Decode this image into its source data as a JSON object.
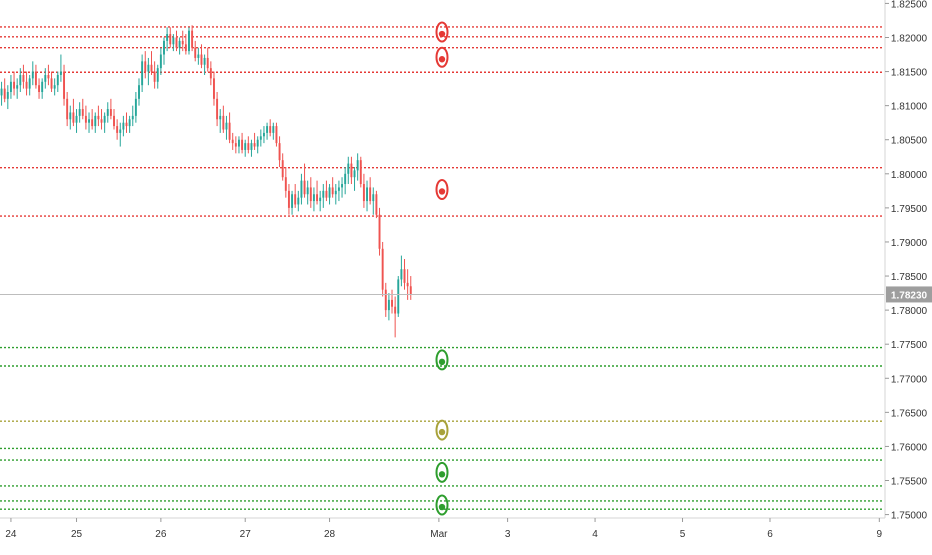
{
  "chart_data": {
    "type": "candlestick",
    "symbol_hint": "",
    "colors": {
      "up": "#26a69a",
      "down": "#ef5350",
      "resistance": "#e53935",
      "support": "#2e9e2e",
      "neutral": "#a8a23a",
      "price_line": "#bdbdbd",
      "price_label_bg": "#9e9e9e",
      "axis_text": "#333333"
    },
    "y_axis": {
      "min": 1.7495,
      "max": 1.8255,
      "ticks": [
        "1.82500",
        "1.82000",
        "1.81500",
        "1.81000",
        "1.80500",
        "1.80000",
        "1.79500",
        "1.79000",
        "1.78500",
        "1.78000",
        "1.77500",
        "1.77000",
        "1.76500",
        "1.76000",
        "1.75500",
        "1.75000"
      ]
    },
    "x_axis": {
      "ticks": [
        {
          "label": "24",
          "i": 3
        },
        {
          "label": "25",
          "i": 24
        },
        {
          "label": "26",
          "i": 51
        },
        {
          "label": "27",
          "i": 78
        },
        {
          "label": "28",
          "i": 105
        },
        {
          "label": "Mar",
          "i": 140
        },
        {
          "label": "3",
          "i": 162
        },
        {
          "label": "4",
          "i": 190
        },
        {
          "label": "5",
          "i": 218
        },
        {
          "label": "6",
          "i": 246
        },
        {
          "label": "9",
          "i": 281
        }
      ],
      "total_slots": 283
    },
    "current_price": {
      "value": 1.7823,
      "label": "1.78230"
    },
    "levels": [
      {
        "price": 1.82155,
        "kind": "resistance"
      },
      {
        "price": 1.8201,
        "kind": "resistance"
      },
      {
        "price": 1.8185,
        "kind": "resistance"
      },
      {
        "price": 1.8149,
        "kind": "resistance"
      },
      {
        "price": 1.8009,
        "kind": "resistance"
      },
      {
        "price": 1.7938,
        "kind": "resistance"
      },
      {
        "price": 1.7745,
        "kind": "support"
      },
      {
        "price": 1.7718,
        "kind": "support"
      },
      {
        "price": 1.7637,
        "kind": "neutral"
      },
      {
        "price": 1.7597,
        "kind": "support"
      },
      {
        "price": 1.758,
        "kind": "support"
      },
      {
        "price": 1.7542,
        "kind": "support"
      },
      {
        "price": 1.752,
        "kind": "support"
      },
      {
        "price": 1.7508,
        "kind": "support"
      }
    ],
    "markers": [
      {
        "price": 1.8208,
        "kind": "resistance"
      },
      {
        "price": 1.8171,
        "kind": "resistance"
      },
      {
        "price": 1.7977,
        "kind": "resistance"
      },
      {
        "price": 1.7727,
        "kind": "support"
      },
      {
        "price": 1.7624,
        "kind": "neutral"
      },
      {
        "price": 1.7562,
        "kind": "support"
      },
      {
        "price": 1.7514,
        "kind": "support"
      }
    ],
    "marker_slot": 141,
    "candles": [
      [
        1.8115,
        1.8135,
        1.81,
        1.8125
      ],
      [
        1.8125,
        1.814,
        1.8105,
        1.811
      ],
      [
        1.811,
        1.813,
        1.8095,
        1.812
      ],
      [
        1.812,
        1.8145,
        1.811,
        1.8135
      ],
      [
        1.8135,
        1.815,
        1.8115,
        1.8125
      ],
      [
        1.8125,
        1.814,
        1.811,
        1.813
      ],
      [
        1.813,
        1.8155,
        1.812,
        1.8145
      ],
      [
        1.8145,
        1.816,
        1.8125,
        1.8135
      ],
      [
        1.8135,
        1.815,
        1.8115,
        1.8125
      ],
      [
        1.8125,
        1.8145,
        1.8115,
        1.814
      ],
      [
        1.814,
        1.8165,
        1.813,
        1.815
      ],
      [
        1.815,
        1.816,
        1.8125,
        1.813
      ],
      [
        1.813,
        1.814,
        1.811,
        1.812
      ],
      [
        1.812,
        1.814,
        1.811,
        1.8135
      ],
      [
        1.8135,
        1.8155,
        1.8125,
        1.8145
      ],
      [
        1.8145,
        1.816,
        1.813,
        1.814
      ],
      [
        1.814,
        1.815,
        1.812,
        1.8125
      ],
      [
        1.8125,
        1.814,
        1.8115,
        1.813
      ],
      [
        1.813,
        1.815,
        1.812,
        1.8145
      ],
      [
        1.8145,
        1.8175,
        1.8135,
        1.815
      ],
      [
        1.815,
        1.816,
        1.81,
        1.811
      ],
      [
        1.811,
        1.812,
        1.807,
        1.808
      ],
      [
        1.808,
        1.81,
        1.8065,
        1.809
      ],
      [
        1.809,
        1.811,
        1.807,
        1.8075
      ],
      [
        1.8075,
        1.8095,
        1.806,
        1.8085
      ],
      [
        1.8085,
        1.8105,
        1.8075,
        1.8095
      ],
      [
        1.8095,
        1.811,
        1.808,
        1.8085
      ],
      [
        1.8085,
        1.81,
        1.8065,
        1.8075
      ],
      [
        1.8075,
        1.809,
        1.806,
        1.808
      ],
      [
        1.808,
        1.8095,
        1.8065,
        1.807
      ],
      [
        1.807,
        1.809,
        1.806,
        1.8085
      ],
      [
        1.8085,
        1.81,
        1.807,
        1.808
      ],
      [
        1.808,
        1.8095,
        1.8065,
        1.8075
      ],
      [
        1.8075,
        1.809,
        1.806,
        1.8085
      ],
      [
        1.8085,
        1.8105,
        1.8075,
        1.8095
      ],
      [
        1.8095,
        1.811,
        1.808,
        1.8085
      ],
      [
        1.8085,
        1.8095,
        1.8065,
        1.807
      ],
      [
        1.807,
        1.808,
        1.805,
        1.806
      ],
      [
        1.806,
        1.8075,
        1.804,
        1.8065
      ],
      [
        1.8065,
        1.8085,
        1.8055,
        1.8075
      ],
      [
        1.8075,
        1.809,
        1.806,
        1.807
      ],
      [
        1.807,
        1.8085,
        1.806,
        1.808
      ],
      [
        1.808,
        1.81,
        1.807,
        1.8085
      ],
      [
        1.8085,
        1.812,
        1.8075,
        1.811
      ],
      [
        1.811,
        1.814,
        1.81,
        1.813
      ],
      [
        1.813,
        1.8175,
        1.812,
        1.8165
      ],
      [
        1.8165,
        1.818,
        1.814,
        1.815
      ],
      [
        1.815,
        1.817,
        1.813,
        1.816
      ],
      [
        1.816,
        1.818,
        1.8145,
        1.815
      ],
      [
        1.815,
        1.8165,
        1.8125,
        1.8135
      ],
      [
        1.8135,
        1.816,
        1.8125,
        1.8155
      ],
      [
        1.8155,
        1.8185,
        1.8145,
        1.8175
      ],
      [
        1.8175,
        1.82,
        1.816,
        1.8195
      ],
      [
        1.8195,
        1.8215,
        1.818,
        1.8205
      ],
      [
        1.8205,
        1.8215,
        1.8185,
        1.819
      ],
      [
        1.819,
        1.8205,
        1.818,
        1.82
      ],
      [
        1.82,
        1.821,
        1.818,
        1.8185
      ],
      [
        1.8185,
        1.82,
        1.8175,
        1.8195
      ],
      [
        1.8195,
        1.821,
        1.818,
        1.819
      ],
      [
        1.819,
        1.8205,
        1.8175,
        1.818
      ],
      [
        1.818,
        1.8215,
        1.8175,
        1.821
      ],
      [
        1.821,
        1.8218,
        1.818,
        1.8185
      ],
      [
        1.8185,
        1.8195,
        1.8165,
        1.817
      ],
      [
        1.817,
        1.8185,
        1.816,
        1.8175
      ],
      [
        1.8175,
        1.819,
        1.8155,
        1.816
      ],
      [
        1.816,
        1.8175,
        1.8145,
        1.817
      ],
      [
        1.817,
        1.8185,
        1.815,
        1.8155
      ],
      [
        1.8155,
        1.8165,
        1.813,
        1.814
      ],
      [
        1.814,
        1.815,
        1.81,
        1.811
      ],
      [
        1.811,
        1.812,
        1.807,
        1.808
      ],
      [
        1.808,
        1.8095,
        1.806,
        1.8085
      ],
      [
        1.8085,
        1.81,
        1.806,
        1.8065
      ],
      [
        1.8065,
        1.8085,
        1.805,
        1.8075
      ],
      [
        1.8075,
        1.809,
        1.8045,
        1.805
      ],
      [
        1.805,
        1.806,
        1.8035,
        1.8045
      ],
      [
        1.8045,
        1.8055,
        1.803,
        1.804
      ],
      [
        1.804,
        1.8055,
        1.803,
        1.805
      ],
      [
        1.805,
        1.806,
        1.803,
        1.8035
      ],
      [
        1.8035,
        1.805,
        1.8025,
        1.8045
      ],
      [
        1.8045,
        1.8055,
        1.803,
        1.8035
      ],
      [
        1.8035,
        1.805,
        1.8025,
        1.8045
      ],
      [
        1.8045,
        1.806,
        1.8035,
        1.804
      ],
      [
        1.804,
        1.8055,
        1.803,
        1.805
      ],
      [
        1.805,
        1.8065,
        1.804,
        1.8055
      ],
      [
        1.8055,
        1.807,
        1.8045,
        1.806
      ],
      [
        1.806,
        1.8075,
        1.805,
        1.807
      ],
      [
        1.807,
        1.808,
        1.8055,
        1.806
      ],
      [
        1.806,
        1.8075,
        1.805,
        1.807
      ],
      [
        1.807,
        1.8075,
        1.804,
        1.8045
      ],
      [
        1.8045,
        1.8055,
        1.801,
        1.802
      ],
      [
        1.802,
        1.803,
        1.799,
        1.7995
      ],
      [
        1.7995,
        1.801,
        1.7965,
        1.7975
      ],
      [
        1.7975,
        1.7985,
        1.794,
        1.795
      ],
      [
        1.795,
        1.7975,
        1.794,
        1.797
      ],
      [
        1.797,
        1.7985,
        1.795,
        1.7955
      ],
      [
        1.7955,
        1.7975,
        1.7945,
        1.7965
      ],
      [
        1.7965,
        1.8,
        1.7955,
        1.799
      ],
      [
        1.799,
        1.8015,
        1.7965,
        1.797
      ],
      [
        1.797,
        1.799,
        1.7955,
        1.798
      ],
      [
        1.798,
        1.7995,
        1.795,
        1.796
      ],
      [
        1.796,
        1.798,
        1.7945,
        1.797
      ],
      [
        1.797,
        1.799,
        1.7955,
        1.796
      ],
      [
        1.796,
        1.7975,
        1.7945,
        1.7965
      ],
      [
        1.7965,
        1.7985,
        1.795,
        1.7975
      ],
      [
        1.7975,
        1.799,
        1.796,
        1.7965
      ],
      [
        1.7965,
        1.7985,
        1.7955,
        1.798
      ],
      [
        1.798,
        1.7995,
        1.7965,
        1.797
      ],
      [
        1.797,
        1.7985,
        1.7955,
        1.7975
      ],
      [
        1.7975,
        1.799,
        1.796,
        1.798
      ],
      [
        1.798,
        1.7995,
        1.7965,
        1.7985
      ],
      [
        1.7985,
        1.801,
        1.797,
        1.8
      ],
      [
        1.8,
        1.8025,
        1.7985,
        1.8015
      ],
      [
        1.8015,
        1.8025,
        1.7985,
        1.7995
      ],
      [
        1.7995,
        1.801,
        1.7975,
        1.8005
      ],
      [
        1.8005,
        1.803,
        1.799,
        1.802
      ],
      [
        1.802,
        1.8025,
        1.798,
        1.7985
      ],
      [
        1.7985,
        1.8,
        1.795,
        1.796
      ],
      [
        1.796,
        1.799,
        1.7945,
        1.798
      ],
      [
        1.798,
        1.7995,
        1.7955,
        1.796
      ],
      [
        1.796,
        1.798,
        1.794,
        1.797
      ],
      [
        1.797,
        1.7975,
        1.7935,
        1.794
      ],
      [
        1.794,
        1.795,
        1.788,
        1.789
      ],
      [
        1.789,
        1.79,
        1.782,
        1.783
      ],
      [
        1.783,
        1.784,
        1.779,
        1.78
      ],
      [
        1.78,
        1.7825,
        1.7785,
        1.7815
      ],
      [
        1.7815,
        1.783,
        1.7795,
        1.7805
      ],
      [
        1.7805,
        1.782,
        1.776,
        1.7795
      ],
      [
        1.7795,
        1.785,
        1.779,
        1.7845
      ],
      [
        1.7845,
        1.788,
        1.7835,
        1.786
      ],
      [
        1.786,
        1.7875,
        1.783,
        1.784
      ],
      [
        1.784,
        1.786,
        1.7815,
        1.7835
      ],
      [
        1.7835,
        1.785,
        1.7815,
        1.7823
      ]
    ]
  }
}
